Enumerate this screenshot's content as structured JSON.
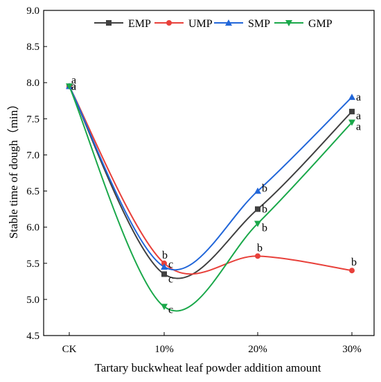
{
  "chart_data": {
    "type": "line",
    "title": "",
    "xlabel": "Tartary buckwheat leaf powder addition amount",
    "ylabel": "Stable time of dough（min）",
    "categories": [
      "CK",
      "10%",
      "20%",
      "30%"
    ],
    "ylim": [
      4.5,
      9.0
    ],
    "yticks": [
      "4.5",
      "5.0",
      "5.5",
      "6.0",
      "6.5",
      "7.0",
      "7.5",
      "8.0",
      "8.5",
      "9.0"
    ],
    "grid": false,
    "smooth": true,
    "legend": {
      "position": "top",
      "orientation": "horizontal"
    },
    "series": [
      {
        "name": "EMP",
        "color": "#404040",
        "marker": "square",
        "values": [
          7.95,
          5.35,
          6.25,
          7.6
        ],
        "labels": [
          "a",
          "c",
          "b",
          "a"
        ]
      },
      {
        "name": "UMP",
        "color": "#e8403a",
        "marker": "circle",
        "values": [
          7.95,
          5.5,
          5.6,
          5.4
        ],
        "labels": [
          "a",
          "b",
          "b",
          "b"
        ]
      },
      {
        "name": "SMP",
        "color": "#2166d9",
        "marker": "triangle-up",
        "values": [
          7.95,
          5.45,
          6.5,
          7.8
        ],
        "labels": [
          "a",
          "c",
          "b",
          "a"
        ]
      },
      {
        "name": "GMP",
        "color": "#1aa84a",
        "marker": "triangle-down",
        "values": [
          7.95,
          4.9,
          6.05,
          7.45
        ],
        "labels": [
          "a",
          "c",
          "b",
          "a"
        ]
      }
    ]
  }
}
